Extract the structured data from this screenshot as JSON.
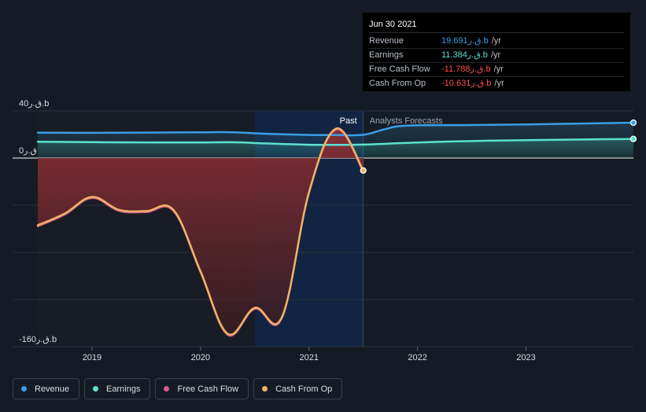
{
  "chart_data": {
    "type": "area",
    "y_labels": [
      {
        "label": "40ق.ر.b",
        "value": 40
      },
      {
        "label": "0ق.ر",
        "value": 0
      },
      {
        "label": "-160ق.ر.b",
        "value": -160
      }
    ],
    "ylim": [
      -160,
      40
    ],
    "xlim": [
      2018.5,
      2023.99
    ],
    "x_ticks": [
      2019,
      2020,
      2021,
      2022,
      2023
    ],
    "x_tick_labels": [
      "2019",
      "2020",
      "2021",
      "2022",
      "2023"
    ],
    "past_label": "Past",
    "forecast_label": "Analysts Forecasts",
    "divider_x": 2021.5,
    "series": [
      {
        "name": "Revenue",
        "color": "#3a9ee6",
        "points": [
          [
            2018.5,
            21.5
          ],
          [
            2019.0,
            21.4
          ],
          [
            2019.5,
            21.6
          ],
          [
            2020.0,
            21.8
          ],
          [
            2020.3,
            21.9
          ],
          [
            2020.6,
            20.6
          ],
          [
            2021.0,
            19.6
          ],
          [
            2021.25,
            19.5
          ],
          [
            2021.5,
            19.7
          ],
          [
            2021.7,
            24.5
          ],
          [
            2021.9,
            27.5
          ],
          [
            2022.5,
            28.0
          ],
          [
            2023.0,
            28.5
          ],
          [
            2023.99,
            30.0
          ]
        ]
      },
      {
        "name": "Earnings",
        "color": "#5be0cf",
        "points": [
          [
            2018.5,
            13.8
          ],
          [
            2019.0,
            13.5
          ],
          [
            2019.5,
            13.3
          ],
          [
            2020.0,
            13.3
          ],
          [
            2020.3,
            13.4
          ],
          [
            2020.6,
            12.4
          ],
          [
            2021.0,
            11.3
          ],
          [
            2021.25,
            11.2
          ],
          [
            2021.5,
            11.4
          ],
          [
            2022.0,
            13.2
          ],
          [
            2022.5,
            14.4
          ],
          [
            2023.0,
            15.2
          ],
          [
            2023.99,
            16.2
          ]
        ]
      },
      {
        "name": "Free Cash Flow",
        "color": "#d65a8a",
        "points": [
          [
            2018.5,
            -58
          ],
          [
            2018.75,
            -48
          ],
          [
            2019.0,
            -34
          ],
          [
            2019.25,
            -45
          ],
          [
            2019.5,
            -46
          ],
          [
            2019.75,
            -45
          ],
          [
            2020.0,
            -97
          ],
          [
            2020.25,
            -150
          ],
          [
            2020.5,
            -128
          ],
          [
            2020.75,
            -136
          ],
          [
            2021.0,
            -30
          ],
          [
            2021.25,
            24
          ],
          [
            2021.5,
            -11.8
          ]
        ]
      },
      {
        "name": "Cash From Op",
        "color": "#f0b266",
        "points": [
          [
            2018.5,
            -57
          ],
          [
            2018.75,
            -47
          ],
          [
            2019.0,
            -33
          ],
          [
            2019.25,
            -44
          ],
          [
            2019.5,
            -45
          ],
          [
            2019.75,
            -44
          ],
          [
            2020.0,
            -96
          ],
          [
            2020.25,
            -149
          ],
          [
            2020.5,
            -127
          ],
          [
            2020.75,
            -135
          ],
          [
            2021.0,
            -29
          ],
          [
            2021.25,
            25
          ],
          [
            2021.5,
            -10.6
          ]
        ]
      }
    ]
  },
  "tooltip": {
    "date": "Jun 30 2021",
    "rows": [
      {
        "label": "Revenue",
        "value": "19.691ق.ر.b",
        "unit": "/yr",
        "color": "#3a9ee6"
      },
      {
        "label": "Earnings",
        "value": "11.384ق.ر.b",
        "unit": "/yr",
        "color": "#5be0cf"
      },
      {
        "label": "Free Cash Flow",
        "value": "-11.788ق.ر.b",
        "unit": "/yr",
        "color": "#ff4d4d"
      },
      {
        "label": "Cash From Op",
        "value": "-10.631ق.ر.b",
        "unit": "/yr",
        "color": "#ff4d4d"
      }
    ]
  },
  "legend": [
    {
      "label": "Revenue",
      "color": "#3a9ee6"
    },
    {
      "label": "Earnings",
      "color": "#5be0cf"
    },
    {
      "label": "Free Cash Flow",
      "color": "#d65a8a"
    },
    {
      "label": "Cash From Op",
      "color": "#f0b266"
    }
  ]
}
